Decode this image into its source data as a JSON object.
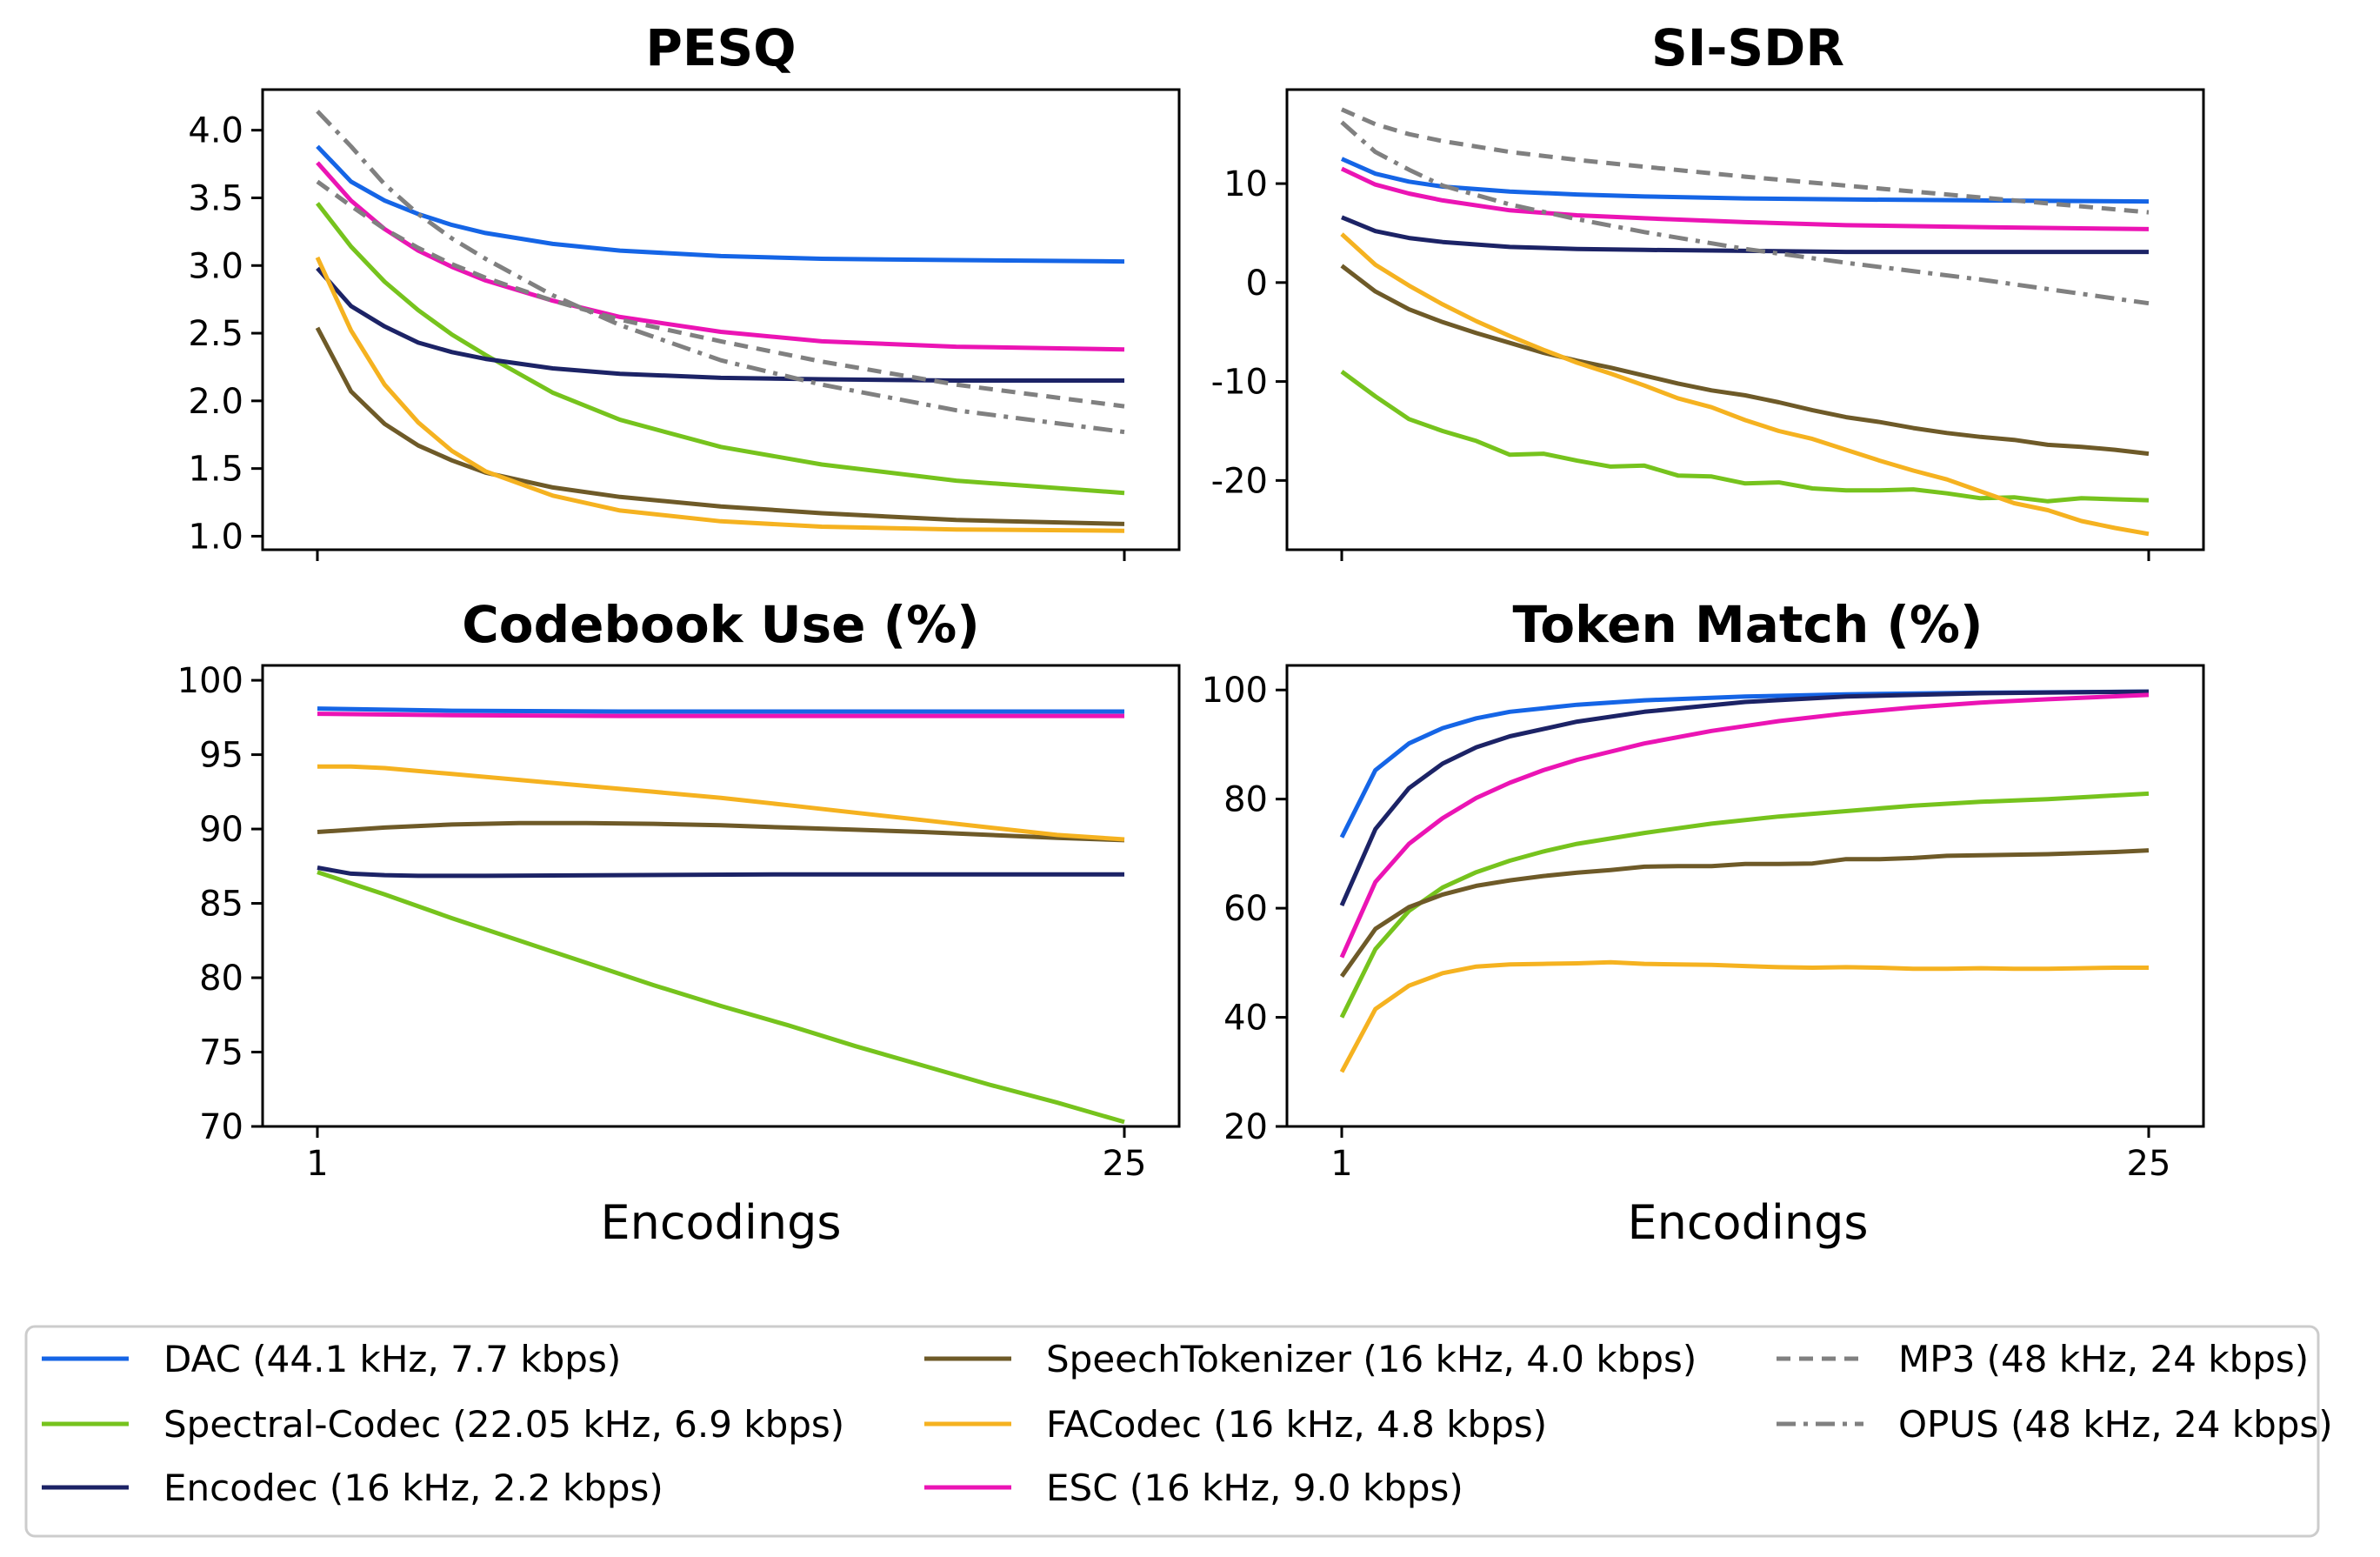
{
  "chart_data": [
    {
      "type": "line",
      "title": "PESQ",
      "xlabel": "",
      "ylabel": "",
      "xlim": [
        1,
        25
      ],
      "ylim": [
        0.9,
        4.3
      ],
      "yticks": [
        1.0,
        1.5,
        2.0,
        2.5,
        3.0,
        3.5,
        4.0
      ],
      "ytick_labels": [
        "1.0",
        "1.5",
        "2.0",
        "2.5",
        "3.0",
        "3.5",
        "4.0"
      ],
      "xticks": [
        1,
        25
      ],
      "xtick_labels": [],
      "series": [
        {
          "name": "DAC (44.1 kHz, 7.7 kbps)",
          "x": [
            1,
            2,
            3,
            4,
            5,
            6,
            8,
            10,
            13,
            16,
            20,
            25
          ],
          "values": [
            3.88,
            3.62,
            3.48,
            3.38,
            3.3,
            3.24,
            3.16,
            3.11,
            3.07,
            3.05,
            3.04,
            3.03
          ]
        },
        {
          "name": "Spectral-Codec (22.05 kHz, 6.9 kbps)",
          "x": [
            1,
            2,
            3,
            4,
            5,
            6,
            8,
            10,
            13,
            16,
            20,
            25
          ],
          "values": [
            3.46,
            3.14,
            2.88,
            2.67,
            2.49,
            2.34,
            2.06,
            1.86,
            1.66,
            1.53,
            1.41,
            1.32
          ]
        },
        {
          "name": "Encodec (16 kHz, 2.2 kbps)",
          "x": [
            1,
            2,
            3,
            4,
            5,
            6,
            8,
            10,
            13,
            16,
            20,
            25
          ],
          "values": [
            2.98,
            2.7,
            2.55,
            2.43,
            2.36,
            2.31,
            2.24,
            2.2,
            2.17,
            2.16,
            2.15,
            2.15
          ]
        },
        {
          "name": "SpeechTokenizer (16 kHz, 4.0 kbps)",
          "x": [
            1,
            2,
            3,
            4,
            5,
            6,
            8,
            10,
            13,
            16,
            20,
            25
          ],
          "values": [
            2.54,
            2.07,
            1.83,
            1.67,
            1.56,
            1.47,
            1.36,
            1.29,
            1.22,
            1.17,
            1.12,
            1.09
          ]
        },
        {
          "name": "FACodec (16 kHz, 4.8 kbps)",
          "x": [
            1,
            2,
            3,
            4,
            5,
            6,
            8,
            10,
            13,
            16,
            20,
            25
          ],
          "values": [
            3.06,
            2.52,
            2.12,
            1.84,
            1.63,
            1.48,
            1.3,
            1.19,
            1.11,
            1.07,
            1.05,
            1.04
          ]
        },
        {
          "name": "ESC (16 kHz, 9.0 kbps)",
          "x": [
            1,
            2,
            3,
            4,
            5,
            6,
            8,
            10,
            13,
            16,
            20,
            25
          ],
          "values": [
            3.76,
            3.48,
            3.27,
            3.11,
            2.99,
            2.89,
            2.74,
            2.62,
            2.51,
            2.44,
            2.4,
            2.38
          ]
        },
        {
          "name": "MP3 (48 kHz, 24 kbps)",
          "x": [
            1,
            2,
            3,
            4,
            5,
            6,
            8,
            10,
            13,
            16,
            20,
            25
          ],
          "values": [
            3.62,
            3.44,
            3.27,
            3.13,
            3.01,
            2.91,
            2.74,
            2.6,
            2.44,
            2.29,
            2.12,
            1.96
          ]
        },
        {
          "name": "OPUS (48 kHz, 24 kbps)",
          "x": [
            1,
            2,
            3,
            4,
            5,
            6,
            8,
            10,
            13,
            16,
            20,
            25
          ],
          "values": [
            4.14,
            3.88,
            3.6,
            3.38,
            3.2,
            3.05,
            2.78,
            2.56,
            2.3,
            2.12,
            1.93,
            1.77
          ]
        }
      ]
    },
    {
      "type": "line",
      "title": "SI-SDR",
      "xlabel": "",
      "ylabel": "",
      "xlim": [
        1,
        25
      ],
      "ylim": [
        -27,
        19.5
      ],
      "yticks": [
        -20,
        -10,
        0,
        10
      ],
      "ytick_labels": [
        "-20",
        "-10",
        "0",
        "10"
      ],
      "xticks": [
        1,
        25
      ],
      "xtick_labels": [],
      "series": [
        {
          "name": "DAC (44.1 kHz, 7.7 kbps)",
          "x": [
            1,
            2,
            3,
            4,
            6,
            8,
            10,
            13,
            16,
            20,
            25
          ],
          "values": [
            12.5,
            11.0,
            10.2,
            9.7,
            9.2,
            8.9,
            8.7,
            8.5,
            8.4,
            8.3,
            8.2
          ]
        },
        {
          "name": "Spectral-Codec (22.05 kHz, 6.9 kbps)",
          "x": [
            1,
            2,
            3,
            4,
            5,
            6,
            7,
            8,
            9,
            10,
            11,
            12,
            13,
            14,
            15,
            16,
            17,
            18,
            19,
            20,
            21,
            22,
            23,
            24,
            25
          ],
          "values": [
            -9.0,
            -11.5,
            -13.8,
            -15.0,
            -16.0,
            -17.4,
            -17.3,
            -18.0,
            -18.6,
            -18.5,
            -19.5,
            -19.6,
            -20.3,
            -20.2,
            -20.8,
            -21.0,
            -21.0,
            -20.9,
            -21.3,
            -21.8,
            -21.7,
            -22.1,
            -21.8,
            -21.9,
            -22.0
          ]
        },
        {
          "name": "Encodec (16 kHz, 2.2 kbps)",
          "x": [
            1,
            2,
            3,
            4,
            6,
            8,
            10,
            13,
            16,
            20,
            25
          ],
          "values": [
            6.6,
            5.2,
            4.5,
            4.1,
            3.6,
            3.4,
            3.3,
            3.2,
            3.1,
            3.1,
            3.1
          ]
        },
        {
          "name": "SpeechTokenizer (16 kHz, 4.0 kbps)",
          "x": [
            1,
            2,
            3,
            4,
            5,
            6,
            7,
            8,
            9,
            10,
            11,
            12,
            13,
            14,
            15,
            16,
            17,
            18,
            19,
            20,
            21,
            22,
            23,
            24,
            25
          ],
          "values": [
            1.7,
            -0.9,
            -2.7,
            -4.0,
            -5.1,
            -6.1,
            -7.1,
            -7.9,
            -8.6,
            -9.4,
            -10.2,
            -10.9,
            -11.4,
            -12.1,
            -12.9,
            -13.6,
            -14.1,
            -14.7,
            -15.2,
            -15.6,
            -15.9,
            -16.4,
            -16.6,
            -16.9,
            -17.3
          ]
        },
        {
          "name": "FACodec (16 kHz, 4.8 kbps)",
          "x": [
            1,
            2,
            3,
            4,
            5,
            6,
            7,
            8,
            9,
            10,
            11,
            12,
            13,
            14,
            15,
            16,
            17,
            18,
            19,
            20,
            21,
            22,
            23,
            24,
            25
          ],
          "values": [
            4.9,
            1.8,
            -0.3,
            -2.2,
            -3.9,
            -5.4,
            -6.8,
            -8.1,
            -9.2,
            -10.4,
            -11.7,
            -12.6,
            -13.9,
            -15.0,
            -15.8,
            -16.9,
            -18.0,
            -19.0,
            -19.9,
            -21.1,
            -22.3,
            -23.0,
            -24.1,
            -24.8,
            -25.4
          ]
        },
        {
          "name": "ESC (16 kHz, 9.0 kbps)",
          "x": [
            1,
            2,
            3,
            4,
            6,
            8,
            10,
            13,
            16,
            20,
            25
          ],
          "values": [
            11.5,
            9.9,
            9.0,
            8.3,
            7.3,
            6.8,
            6.5,
            6.1,
            5.8,
            5.6,
            5.4
          ]
        },
        {
          "name": "MP3 (48 kHz, 24 kbps)",
          "x": [
            1,
            2,
            3,
            4,
            6,
            8,
            10,
            13,
            16,
            20,
            25
          ],
          "values": [
            17.5,
            16.0,
            15.0,
            14.3,
            13.2,
            12.4,
            11.7,
            10.7,
            9.8,
            8.6,
            7.1
          ]
        },
        {
          "name": "OPUS (48 kHz, 24 kbps)",
          "x": [
            1,
            2,
            3,
            4,
            6,
            8,
            10,
            13,
            16,
            20,
            25
          ],
          "values": [
            16.2,
            13.2,
            11.4,
            9.8,
            7.9,
            6.4,
            5.1,
            3.4,
            2.0,
            0.3,
            -2.1
          ]
        }
      ]
    },
    {
      "type": "line",
      "title": "Codebook Use (%)",
      "xlabel": "Encodings",
      "ylabel": "",
      "xlim": [
        1,
        25
      ],
      "ylim": [
        70,
        101
      ],
      "yticks": [
        70,
        75,
        80,
        85,
        90,
        95,
        100
      ],
      "ytick_labels": [
        "70",
        "75",
        "80",
        "85",
        "90",
        "95",
        "100"
      ],
      "xticks": [
        1,
        25
      ],
      "xtick_labels": [
        "1",
        "25"
      ],
      "series": [
        {
          "name": "DAC (44.1 kHz, 7.7 kbps)",
          "x": [
            1,
            5,
            10,
            15,
            20,
            25
          ],
          "values": [
            98.1,
            97.95,
            97.9,
            97.9,
            97.9,
            97.9
          ]
        },
        {
          "name": "Spectral-Codec (22.05 kHz, 6.9 kbps)",
          "x": [
            1,
            3,
            5,
            7,
            9,
            11,
            13,
            15,
            17,
            19,
            21,
            23,
            25
          ],
          "values": [
            87.1,
            85.6,
            84.0,
            82.5,
            81.0,
            79.5,
            78.1,
            76.8,
            75.4,
            74.1,
            72.8,
            71.6,
            70.3
          ]
        },
        {
          "name": "Encodec (16 kHz, 2.2 kbps)",
          "x": [
            1,
            2,
            3,
            4,
            6,
            10,
            15,
            20,
            25
          ],
          "values": [
            87.4,
            87.0,
            86.9,
            86.85,
            86.85,
            86.9,
            86.95,
            86.95,
            86.95
          ]
        },
        {
          "name": "SpeechTokenizer (16 kHz, 4.0 kbps)",
          "x": [
            1,
            3,
            5,
            7,
            9,
            11,
            13,
            15,
            17,
            19,
            21,
            23,
            25
          ],
          "values": [
            89.8,
            90.1,
            90.3,
            90.4,
            90.4,
            90.35,
            90.25,
            90.1,
            89.95,
            89.8,
            89.6,
            89.4,
            89.25
          ]
        },
        {
          "name": "FACodec (16 kHz, 4.8 kbps)",
          "x": [
            1,
            2,
            3,
            5,
            7,
            9,
            11,
            13,
            15,
            17,
            19,
            21,
            23,
            25
          ],
          "values": [
            94.2,
            94.2,
            94.1,
            93.7,
            93.3,
            92.9,
            92.5,
            92.1,
            91.6,
            91.1,
            90.6,
            90.1,
            89.6,
            89.3
          ]
        },
        {
          "name": "ESC (16 kHz, 9.0 kbps)",
          "x": [
            1,
            5,
            10,
            15,
            20,
            25
          ],
          "values": [
            97.75,
            97.65,
            97.6,
            97.6,
            97.6,
            97.6
          ]
        }
      ]
    },
    {
      "type": "line",
      "title": "Token Match (%)",
      "xlabel": "Encodings",
      "ylabel": "",
      "xlim": [
        1,
        25
      ],
      "ylim": [
        20,
        104.5
      ],
      "yticks": [
        20,
        40,
        60,
        80,
        100
      ],
      "ytick_labels": [
        "20",
        "40",
        "60",
        "80",
        "100"
      ],
      "xticks": [
        1,
        25
      ],
      "xtick_labels": [
        "1",
        "25"
      ],
      "series": [
        {
          "name": "DAC (44.1 kHz, 7.7 kbps)",
          "x": [
            1,
            2,
            3,
            4,
            5,
            6,
            8,
            10,
            13,
            16,
            20,
            25
          ],
          "values": [
            73,
            85.3,
            90.2,
            93,
            94.8,
            96,
            97.3,
            98.1,
            98.8,
            99.2,
            99.5,
            99.7
          ]
        },
        {
          "name": "Spectral-Codec (22.05 kHz, 6.9 kbps)",
          "x": [
            1,
            2,
            3,
            4,
            5,
            6,
            7,
            8,
            10,
            12,
            14,
            16,
            18,
            20,
            22,
            25
          ],
          "values": [
            40,
            52.5,
            59.5,
            63.8,
            66.6,
            68.7,
            70.4,
            71.8,
            73.8,
            75.5,
            76.8,
            77.8,
            78.8,
            79.5,
            80,
            81
          ]
        },
        {
          "name": "Encodec (16 kHz, 2.2 kbps)",
          "x": [
            1,
            2,
            3,
            4,
            5,
            6,
            8,
            10,
            13,
            16,
            20,
            25
          ],
          "values": [
            60.5,
            74.5,
            82,
            86.5,
            89.5,
            91.5,
            94.2,
            96,
            97.8,
            98.8,
            99.4,
            99.7
          ]
        },
        {
          "name": "SpeechTokenizer (16 kHz, 4.0 kbps)",
          "x": [
            1,
            2,
            3,
            4,
            5,
            6,
            7,
            8,
            9,
            10,
            11,
            12,
            13,
            14,
            15,
            16,
            17,
            18,
            19,
            20,
            21,
            22,
            23,
            24,
            25
          ],
          "values": [
            47.5,
            56.2,
            60.2,
            62.5,
            64.1,
            65.1,
            65.9,
            66.5,
            67,
            67.6,
            67.7,
            67.7,
            68.1,
            68.1,
            68.2,
            69,
            69,
            69.2,
            69.6,
            69.7,
            69.8,
            69.9,
            70.1,
            70.3,
            70.6
          ]
        },
        {
          "name": "FACodec (16 kHz, 4.8 kbps)",
          "x": [
            1,
            2,
            3,
            4,
            5,
            6,
            7,
            8,
            9,
            10,
            11,
            12,
            13,
            14,
            15,
            16,
            17,
            18,
            19,
            20,
            21,
            22,
            23,
            24,
            25
          ],
          "values": [
            30,
            41.5,
            45.8,
            48.1,
            49.3,
            49.7,
            49.8,
            49.9,
            50.1,
            49.8,
            49.7,
            49.6,
            49.4,
            49.2,
            49.1,
            49.2,
            49.1,
            48.9,
            48.9,
            49,
            48.9,
            48.9,
            49,
            49.1,
            49.1
          ]
        },
        {
          "name": "ESC (16 kHz, 9.0 kbps)",
          "x": [
            1,
            2,
            3,
            4,
            5,
            6,
            7,
            8,
            10,
            12,
            14,
            16,
            18,
            20,
            22,
            25
          ],
          "values": [
            51,
            64.8,
            71.8,
            76.5,
            80.2,
            83,
            85.3,
            87.2,
            90.2,
            92.5,
            94.3,
            95.7,
            96.8,
            97.7,
            98.3,
            99.1
          ]
        }
      ]
    }
  ],
  "legend": {
    "items": [
      {
        "label": "DAC (44.1 kHz, 7.7 kbps)",
        "color": "#1565e6",
        "dash": "solid"
      },
      {
        "label": "Spectral-Codec (22.05 kHz, 6.9 kbps)",
        "color": "#76c31d",
        "dash": "solid"
      },
      {
        "label": "Encodec (16 kHz, 2.2 kbps)",
        "color": "#1c2366",
        "dash": "solid"
      },
      {
        "label": "SpeechTokenizer (16 kHz, 4.0 kbps)",
        "color": "#6e5a28",
        "dash": "solid"
      },
      {
        "label": "FACodec (16 kHz, 4.8 kbps)",
        "color": "#f5b220",
        "dash": "solid"
      },
      {
        "label": "ESC (16 kHz, 9.0 kbps)",
        "color": "#eb14b4",
        "dash": "solid"
      },
      {
        "label": "MP3 (48 kHz, 24 kbps)",
        "color": "#808080",
        "dash": "dashed"
      },
      {
        "label": "OPUS (48 kHz, 24 kbps)",
        "color": "#808080",
        "dash": "dashdot"
      }
    ]
  }
}
